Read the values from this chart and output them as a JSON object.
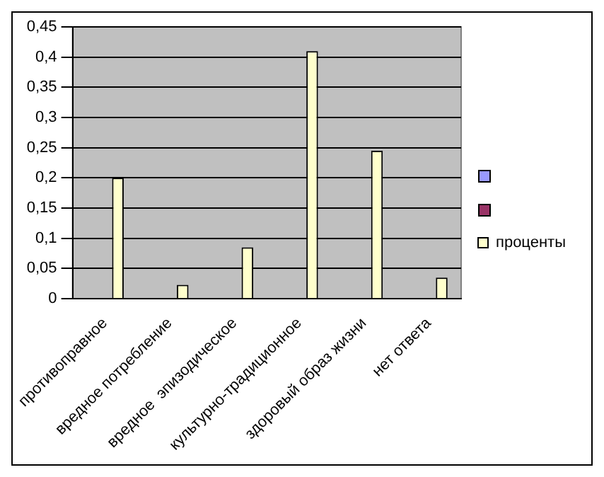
{
  "chart_data": {
    "type": "bar",
    "categories": [
      "противоправное",
      "вредное потребление",
      "вредное  эпизодическое",
      "культурно-традиционное",
      "здоровый образ жизни",
      "нет ответа"
    ],
    "series": [
      {
        "color": "#9999ff",
        "values": [
          null,
          null,
          null,
          null,
          null,
          null
        ]
      },
      {
        "color": "#993366",
        "values": [
          null,
          null,
          null,
          null,
          null,
          null
        ]
      },
      {
        "name": "проценты",
        "color": "#ffffcc",
        "values": [
          0.2,
          0.023,
          0.085,
          0.41,
          0.245,
          0.035
        ]
      }
    ],
    "ylim": [
      0,
      0.45
    ],
    "yticks": [
      {
        "value": 0,
        "label": "0"
      },
      {
        "value": 0.05,
        "label": "0,05"
      },
      {
        "value": 0.1,
        "label": "0,1"
      },
      {
        "value": 0.15,
        "label": "0,15"
      },
      {
        "value": 0.2,
        "label": "0,2"
      },
      {
        "value": 0.25,
        "label": "0,25"
      },
      {
        "value": 0.3,
        "label": "0,3"
      },
      {
        "value": 0.35,
        "label": "0,35"
      },
      {
        "value": 0.4,
        "label": "0,4"
      },
      {
        "value": 0.45,
        "label": "0,45"
      }
    ],
    "grid": "y",
    "legend": "right"
  }
}
